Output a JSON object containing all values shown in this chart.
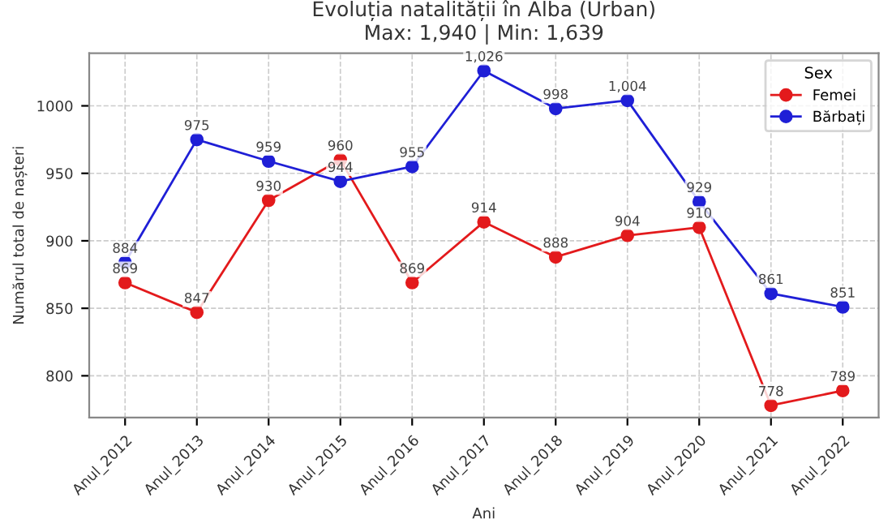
{
  "chart_data": {
    "type": "line",
    "title": "Evoluția natalității în Alba (Urban)",
    "subtitle": "Max: 1,940 | Min: 1,639",
    "xlabel": "Ani",
    "ylabel": "Numărul total de nașteri",
    "legend_title": "Sex",
    "categories": [
      "Anul_2012",
      "Anul_2013",
      "Anul_2014",
      "Anul_2015",
      "Anul_2016",
      "Anul_2017",
      "Anul_2018",
      "Anul_2019",
      "Anul_2020",
      "Anul_2021",
      "Anul_2022"
    ],
    "series": [
      {
        "name": "Femei",
        "color": "#e31a1c",
        "values": [
          869,
          847,
          930,
          960,
          869,
          914,
          888,
          904,
          910,
          778,
          789
        ],
        "value_labels": [
          "869",
          "847",
          "930",
          "960",
          "869",
          "914",
          "888",
          "904",
          "910",
          "778",
          "789"
        ]
      },
      {
        "name": "Bărbați",
        "color": "#1f1fd6",
        "values": [
          884,
          975,
          959,
          944,
          955,
          1026,
          998,
          1004,
          929,
          861,
          851
        ],
        "value_labels": [
          "884",
          "975",
          "959",
          "944",
          "955",
          "1,026",
          "998",
          "1,004",
          "929",
          "861",
          "851"
        ]
      }
    ],
    "ylim": [
      769,
      1039
    ],
    "yticks": [
      800,
      850,
      900,
      950,
      1000
    ],
    "grid": true,
    "legend": "top right",
    "marker": "circle",
    "line_style": "solid"
  }
}
